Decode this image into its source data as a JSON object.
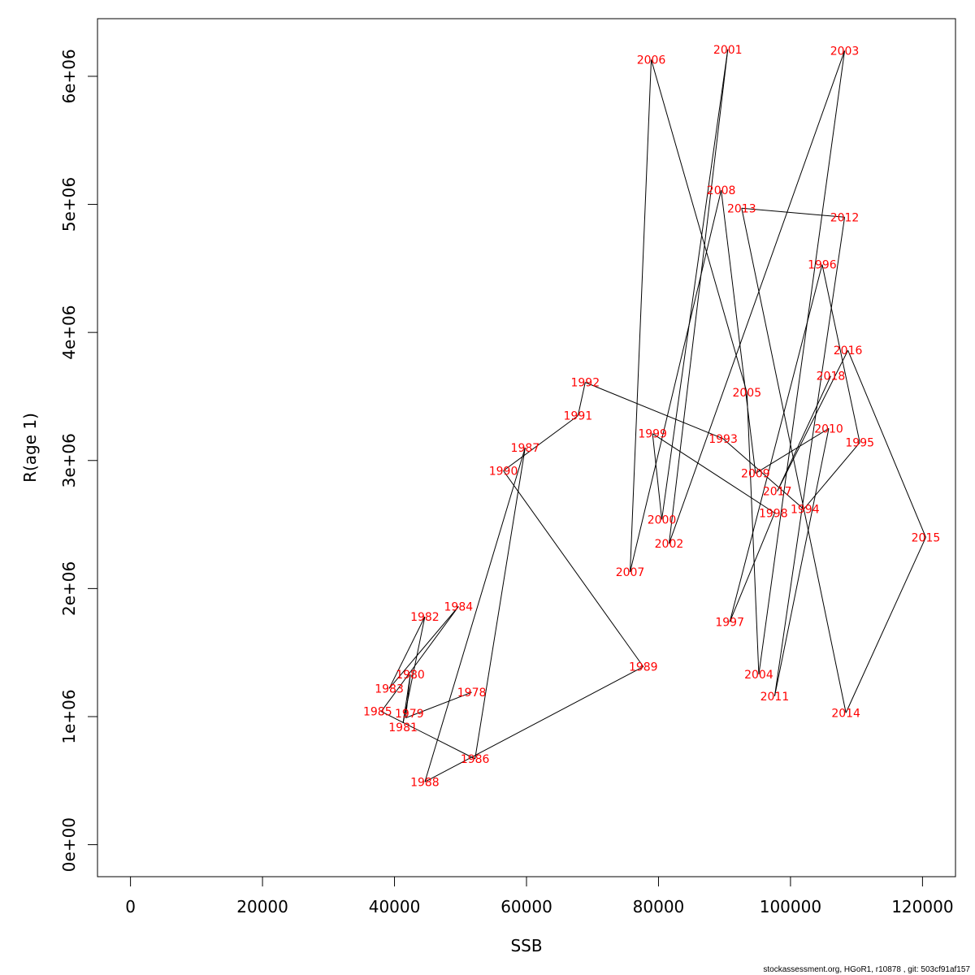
{
  "chart_data": {
    "type": "line",
    "title": "",
    "xlabel": "SSB",
    "ylabel": "R(age 1)",
    "xlim": [
      -5000,
      125000
    ],
    "ylim": [
      -250000,
      6450000
    ],
    "x_ticks": [
      0,
      20000,
      40000,
      60000,
      80000,
      100000,
      120000
    ],
    "x_tick_labels": [
      "0",
      "20000",
      "40000",
      "60000",
      "80000",
      "100000",
      "120000"
    ],
    "y_ticks": [
      0,
      1000000,
      2000000,
      3000000,
      4000000,
      5000000,
      6000000
    ],
    "y_tick_labels": [
      "0e+00",
      "1e+06",
      "2e+06",
      "3e+06",
      "4e+06",
      "5e+06",
      "6e+06"
    ],
    "grid": false,
    "line_color": "#000000",
    "label_color": "#ff0000",
    "points": [
      {
        "year": "1978",
        "x": 51700,
        "y": 1190000
      },
      {
        "year": "1979",
        "x": 41700,
        "y": 990000
      },
      {
        "year": "1980",
        "x": 42400,
        "y": 1330000
      },
      {
        "year": "1981",
        "x": 41300,
        "y": 950000
      },
      {
        "year": "1982",
        "x": 44600,
        "y": 1780000
      },
      {
        "year": "1983",
        "x": 39200,
        "y": 1220000
      },
      {
        "year": "1984",
        "x": 49700,
        "y": 1860000
      },
      {
        "year": "1985",
        "x": 38000,
        "y": 1040000
      },
      {
        "year": "1986",
        "x": 52200,
        "y": 670000
      },
      {
        "year": "1987",
        "x": 59800,
        "y": 3100000
      },
      {
        "year": "1988",
        "x": 44600,
        "y": 490000
      },
      {
        "year": "1989",
        "x": 77700,
        "y": 1390000
      },
      {
        "year": "1990",
        "x": 56500,
        "y": 2920000
      },
      {
        "year": "1991",
        "x": 67800,
        "y": 3350000
      },
      {
        "year": "1992",
        "x": 68900,
        "y": 3610000
      },
      {
        "year": "1993",
        "x": 89800,
        "y": 3170000
      },
      {
        "year": "1994",
        "x": 102000,
        "y": 2620000
      },
      {
        "year": "1995",
        "x": 110500,
        "y": 3140000
      },
      {
        "year": "1996",
        "x": 104800,
        "y": 4530000
      },
      {
        "year": "1997",
        "x": 90800,
        "y": 1740000
      },
      {
        "year": "1998",
        "x": 97600,
        "y": 2590000
      },
      {
        "year": "1999",
        "x": 79100,
        "y": 3210000
      },
      {
        "year": "2000",
        "x": 80500,
        "y": 2540000
      },
      {
        "year": "2001",
        "x": 90500,
        "y": 6210000
      },
      {
        "year": "2002",
        "x": 81600,
        "y": 2350000
      },
      {
        "year": "2003",
        "x": 108200,
        "y": 6200000
      },
      {
        "year": "2004",
        "x": 95200,
        "y": 1330000
      },
      {
        "year": "2005",
        "x": 93400,
        "y": 3530000
      },
      {
        "year": "2006",
        "x": 78900,
        "y": 6130000
      },
      {
        "year": "2007",
        "x": 75700,
        "y": 2130000
      },
      {
        "year": "2008",
        "x": 89500,
        "y": 5110000
      },
      {
        "year": "2009",
        "x": 94700,
        "y": 2900000
      },
      {
        "year": "2010",
        "x": 105800,
        "y": 3250000
      },
      {
        "year": "2011",
        "x": 97600,
        "y": 1160000
      },
      {
        "year": "2012",
        "x": 108200,
        "y": 4900000
      },
      {
        "year": "2013",
        "x": 92600,
        "y": 4970000
      },
      {
        "year": "2014",
        "x": 108400,
        "y": 1030000
      },
      {
        "year": "2015",
        "x": 120500,
        "y": 2400000
      },
      {
        "year": "2016",
        "x": 108700,
        "y": 3860000
      },
      {
        "year": "2017",
        "x": 98000,
        "y": 2760000
      },
      {
        "year": "2018",
        "x": 106100,
        "y": 3660000
      }
    ]
  },
  "footer": "stockassessment.org, HGoR1, r10878 , git: 503cf91af157"
}
